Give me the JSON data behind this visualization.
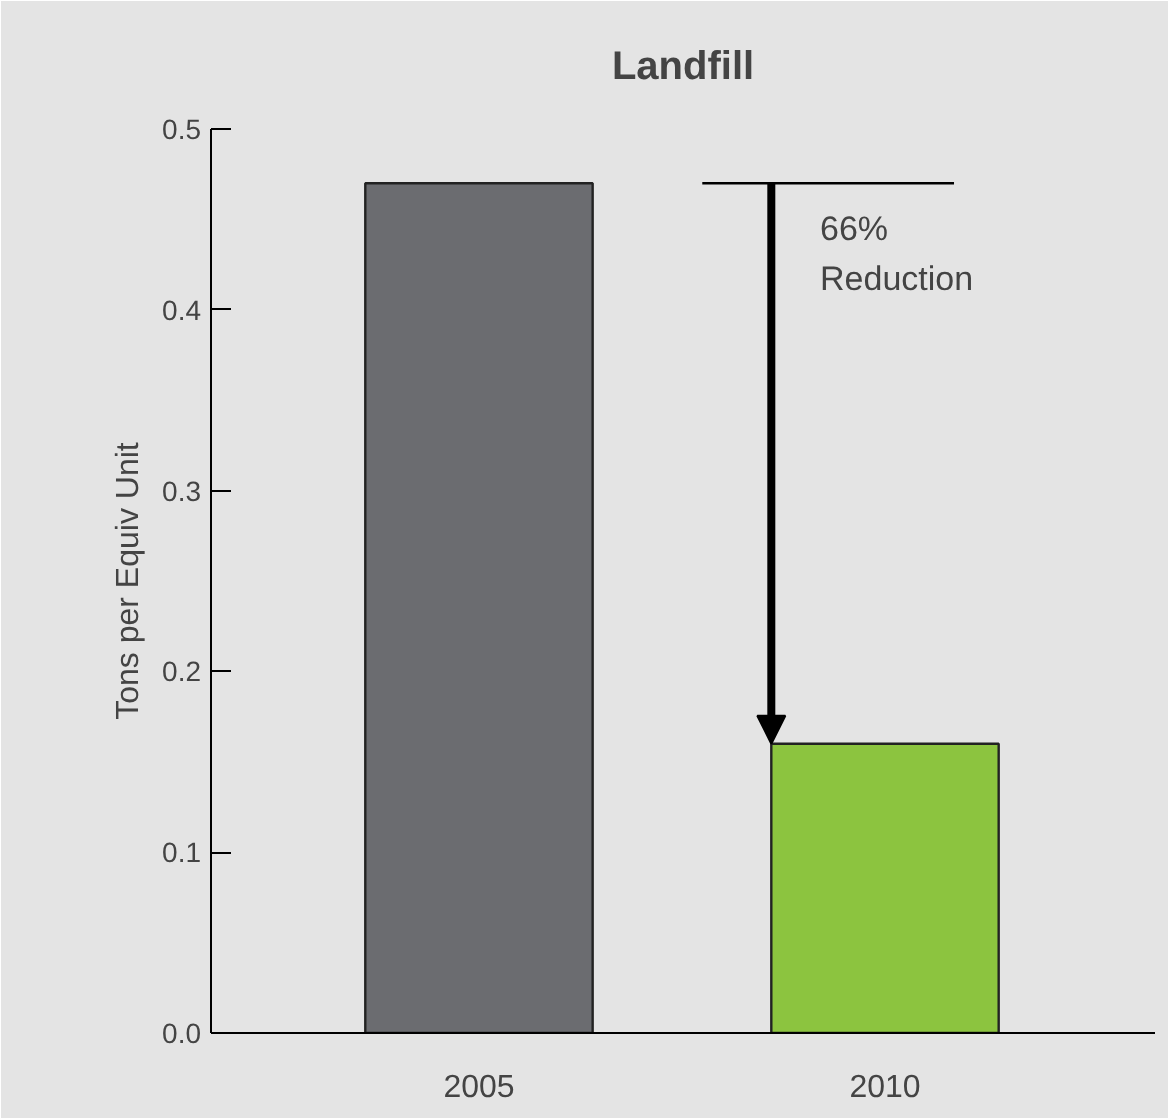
{
  "chart_data": {
    "type": "bar",
    "title": "Landfill",
    "ylabel": "Tons per Equiv Unit",
    "categories": [
      "2005",
      "2010"
    ],
    "values": [
      0.47,
      0.16
    ],
    "colors": [
      "#6b6c70",
      "#8cc43f"
    ],
    "ylim": [
      0,
      0.5
    ],
    "yticks": [
      {
        "value": 0,
        "label": "0.0"
      },
      0.1,
      0.2,
      0.3,
      0.4,
      0.5
    ],
    "ref_lines": [
      {
        "axis": "y",
        "value": 0.47,
        "color": "#000000"
      }
    ],
    "annotations": [
      "66%\nReduction"
    ]
  }
}
